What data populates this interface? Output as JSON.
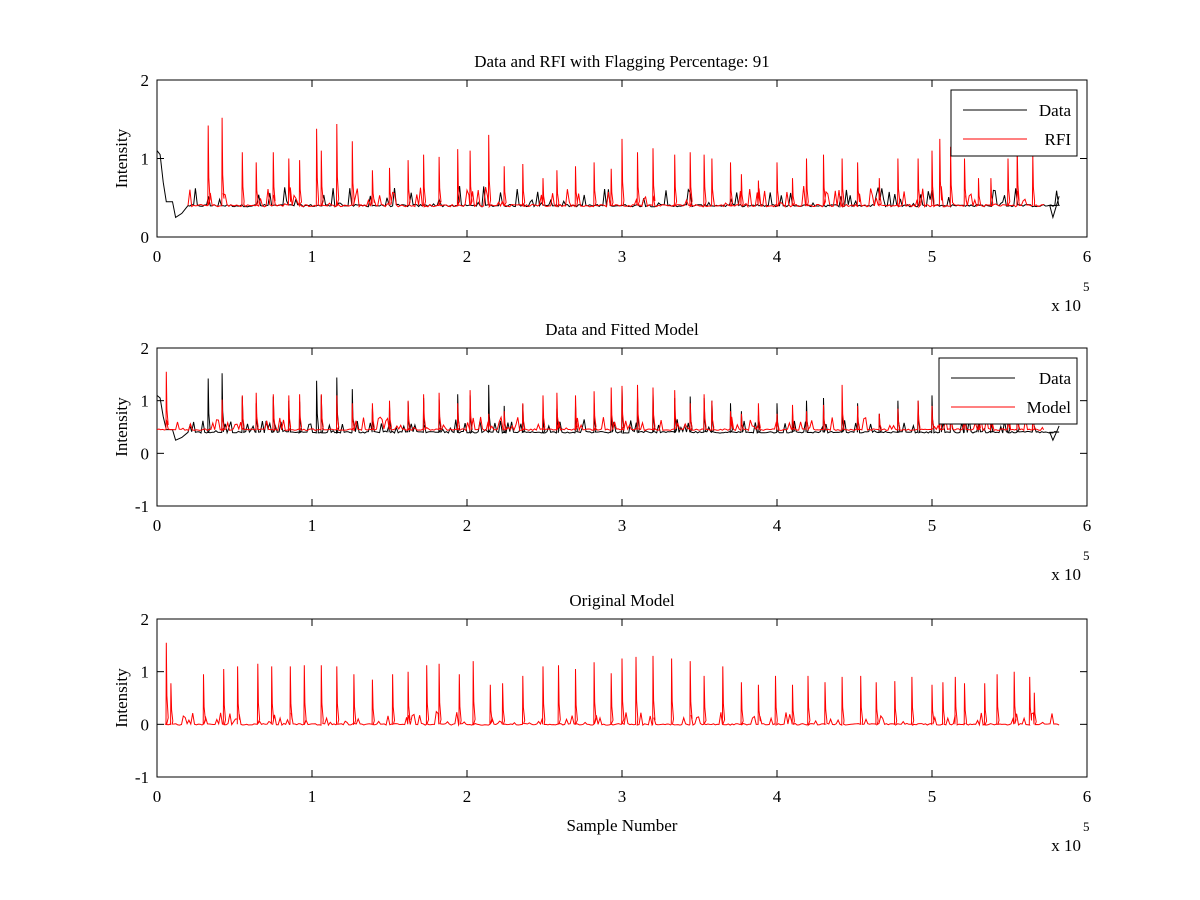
{
  "chart_data": [
    {
      "type": "line",
      "title": "Data and RFI with Flagging Percentage: 91",
      "xlabel": "",
      "ylabel": "Intensity",
      "xlim": [
        0,
        6
      ],
      "ylim": [
        0,
        2
      ],
      "xticks": [
        "0",
        "1",
        "2",
        "3",
        "4",
        "5",
        "6"
      ],
      "yticks": [
        "0",
        "1",
        "2"
      ],
      "x_multiplier": {
        "base": "x 10",
        "exponent": "5"
      },
      "legend": {
        "placement": "top-right",
        "entries": [
          "Data",
          "RFI"
        ]
      },
      "grid": false,
      "series": [
        {
          "name": "Data",
          "color": "#000000",
          "baseline": 0.4,
          "start_level": 1.1,
          "x_range": [
            0,
            5.82
          ]
        },
        {
          "name": "RFI",
          "color": "#ff0000",
          "baseline": 0.4,
          "x_range": [
            0.2,
            5.72
          ],
          "spike_x": [
            0.33,
            0.42,
            0.55,
            0.64,
            0.75,
            0.85,
            0.92,
            1.03,
            1.06,
            1.16,
            1.26,
            1.39,
            1.5,
            1.62,
            1.72,
            1.82,
            1.94,
            2.02,
            2.14,
            2.24,
            2.36,
            2.49,
            2.58,
            2.7,
            2.82,
            2.93,
            3.0,
            3.1,
            3.2,
            3.34,
            3.44,
            3.53,
            3.58,
            3.7,
            3.77,
            3.88,
            4.0,
            4.1,
            4.19,
            4.3,
            4.42,
            4.52,
            4.66,
            4.78,
            4.91,
            5.0,
            5.05,
            5.12,
            5.21,
            5.3,
            5.38,
            5.49,
            5.55,
            5.65
          ],
          "spike_y": [
            1.42,
            1.52,
            1.08,
            0.95,
            1.08,
            1.0,
            0.98,
            1.38,
            1.1,
            1.44,
            1.22,
            0.85,
            0.88,
            0.98,
            1.05,
            1.02,
            1.12,
            1.1,
            1.3,
            0.9,
            0.93,
            0.75,
            0.85,
            0.9,
            0.95,
            0.87,
            1.25,
            1.08,
            1.13,
            1.05,
            1.08,
            1.05,
            1.0,
            0.95,
            0.8,
            0.72,
            0.95,
            0.75,
            1.0,
            1.05,
            1.0,
            0.95,
            0.75,
            1.0,
            1.0,
            1.1,
            1.25,
            1.15,
            1.0,
            0.75,
            0.75,
            1.0,
            1.15,
            1.05
          ]
        }
      ]
    },
    {
      "type": "line",
      "title": "Data and Fitted Model",
      "xlabel": "",
      "ylabel": "Intensity",
      "xlim": [
        0,
        6
      ],
      "ylim": [
        -1,
        2
      ],
      "xticks": [
        "0",
        "1",
        "2",
        "3",
        "4",
        "5",
        "6"
      ],
      "yticks": [
        "-1",
        "0",
        "1",
        "2"
      ],
      "x_multiplier": {
        "base": "x 10",
        "exponent": "5"
      },
      "legend": {
        "placement": "top-right",
        "entries": [
          "Data",
          "Model"
        ]
      },
      "grid": false,
      "series": [
        {
          "name": "Data",
          "color": "#000000",
          "baseline": 0.4,
          "start_level": 1.1,
          "x_range": [
            0,
            5.82
          ],
          "spike_x": [
            0.33,
            0.42,
            0.55,
            0.64,
            0.75,
            0.85,
            0.92,
            1.03,
            1.06,
            1.16,
            1.26,
            1.39,
            1.5,
            1.62,
            1.72,
            1.82,
            1.94,
            2.02,
            2.14,
            2.24,
            2.36,
            2.49,
            2.58,
            2.7,
            2.82,
            2.93,
            3.0,
            3.1,
            3.2,
            3.34,
            3.44,
            3.53,
            3.58,
            3.7,
            3.77,
            3.88,
            4.0,
            4.1,
            4.19,
            4.3,
            4.42,
            4.52,
            4.66,
            4.78,
            4.91,
            5.0,
            5.05,
            5.12,
            5.21,
            5.3,
            5.38,
            5.49,
            5.55,
            5.65
          ],
          "spike_y": [
            1.42,
            1.52,
            1.08,
            0.95,
            1.08,
            1.0,
            0.98,
            1.38,
            1.1,
            1.44,
            1.22,
            0.85,
            0.88,
            0.98,
            1.05,
            1.02,
            1.12,
            1.1,
            1.3,
            0.9,
            0.93,
            0.75,
            0.85,
            0.9,
            0.95,
            0.87,
            1.25,
            1.08,
            1.13,
            1.05,
            1.08,
            1.05,
            1.0,
            0.95,
            0.8,
            0.72,
            0.95,
            0.75,
            1.0,
            1.05,
            1.0,
            0.95,
            0.75,
            1.0,
            1.0,
            1.1,
            1.25,
            1.15,
            1.0,
            0.75,
            0.75,
            1.0,
            1.15,
            1.05
          ]
        },
        {
          "name": "Model",
          "color": "#ff0000",
          "baseline": 0.45,
          "x_range": [
            0,
            5.72
          ],
          "spike_x": [
            0.06,
            0.42,
            0.55,
            0.64,
            0.75,
            0.85,
            0.92,
            1.06,
            1.16,
            1.26,
            1.39,
            1.5,
            1.62,
            1.72,
            1.82,
            1.94,
            2.02,
            2.14,
            2.24,
            2.36,
            2.49,
            2.58,
            2.7,
            2.82,
            2.93,
            3.0,
            3.1,
            3.2,
            3.34,
            3.44,
            3.53,
            3.58,
            3.7,
            3.77,
            3.88,
            4.0,
            4.1,
            4.19,
            4.3,
            4.42,
            4.52,
            4.66,
            4.78,
            4.91,
            5.0,
            5.05,
            5.12,
            5.21,
            5.3,
            5.38,
            5.49,
            5.55,
            5.65
          ],
          "spike_y": [
            1.55,
            1.02,
            1.1,
            1.15,
            1.12,
            1.1,
            1.12,
            1.12,
            1.1,
            0.95,
            0.95,
            1.0,
            1.0,
            1.12,
            1.15,
            0.95,
            1.2,
            0.75,
            0.8,
            0.95,
            1.1,
            1.15,
            1.1,
            1.18,
            1.25,
            1.28,
            1.3,
            1.25,
            1.2,
            0.95,
            1.12,
            1.0,
            0.8,
            0.75,
            0.95,
            0.75,
            0.92,
            0.8,
            0.92,
            1.3,
            0.9,
            0.75,
            0.85,
            1.0,
            0.9,
            0.95,
            0.9,
            0.8,
            0.95,
            0.82,
            0.8,
            0.9,
            0.8
          ]
        }
      ]
    },
    {
      "type": "line",
      "title": "Original Model",
      "xlabel": "Sample Number",
      "ylabel": "Intensity",
      "xlim": [
        0,
        6
      ],
      "ylim": [
        -1,
        2
      ],
      "xticks": [
        "0",
        "1",
        "2",
        "3",
        "4",
        "5",
        "6"
      ],
      "yticks": [
        "-1",
        "0",
        "1",
        "2"
      ],
      "x_multiplier": {
        "base": "x 10",
        "exponent": "5"
      },
      "legend": null,
      "grid": false,
      "series": [
        {
          "name": "",
          "color": "#ff0000",
          "baseline": 0.0,
          "x_range": [
            0.05,
            5.82
          ],
          "spike_x": [
            0.06,
            0.09,
            0.3,
            0.43,
            0.52,
            0.65,
            0.74,
            0.86,
            0.95,
            1.06,
            1.16,
            1.27,
            1.39,
            1.52,
            1.62,
            1.74,
            1.82,
            1.95,
            2.04,
            2.15,
            2.23,
            2.36,
            2.49,
            2.59,
            2.7,
            2.82,
            2.93,
            3.0,
            3.09,
            3.2,
            3.32,
            3.44,
            3.53,
            3.65,
            3.77,
            3.88,
            3.99,
            4.1,
            4.2,
            4.31,
            4.42,
            4.54,
            4.64,
            4.76,
            4.87,
            5.0,
            5.07,
            5.15,
            5.21,
            5.34,
            5.42,
            5.53,
            5.63,
            5.66
          ],
          "spike_y": [
            1.55,
            0.78,
            0.95,
            1.05,
            1.1,
            1.15,
            1.1,
            1.1,
            1.12,
            1.12,
            1.1,
            0.95,
            0.85,
            0.95,
            1.0,
            1.12,
            1.15,
            0.95,
            1.2,
            0.75,
            0.78,
            0.92,
            1.1,
            1.12,
            1.05,
            1.18,
            0.97,
            1.25,
            1.28,
            1.3,
            1.25,
            1.2,
            0.92,
            1.1,
            0.8,
            0.75,
            0.92,
            0.75,
            0.92,
            0.8,
            0.9,
            0.92,
            0.8,
            0.82,
            0.9,
            0.75,
            0.8,
            0.9,
            0.78,
            0.78,
            0.95,
            1.0,
            0.9,
            0.6
          ]
        }
      ]
    }
  ]
}
